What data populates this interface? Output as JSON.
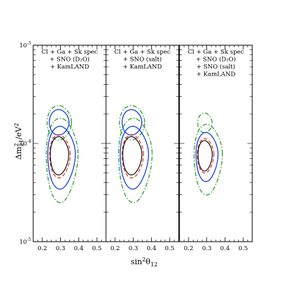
{
  "chart_data": {
    "type": "line",
    "x_axis": {
      "label_base": "sin",
      "label_sup": "2",
      "label_mid": "θ",
      "label_sub": "12",
      "range": [
        0.15,
        0.55
      ],
      "ticks": [
        0.2,
        0.3,
        0.4,
        0.5
      ],
      "tick_labels": [
        "0.2",
        "0.3",
        "0.4",
        "0.5"
      ]
    },
    "y_axis": {
      "label_pre": "Δm",
      "label_sup": "2",
      "label_sub": "21",
      "label_post": "/eV",
      "label_sup2": "2",
      "scale": "log",
      "range": [
        1e-05,
        0.001
      ],
      "ticks": [
        1e-05,
        0.0001,
        0.001
      ],
      "tick_base": "10",
      "tick_exps": [
        "-5",
        "-4",
        "-3"
      ]
    },
    "grid": false,
    "colors": {
      "black": "#000000",
      "red": "#e8322b",
      "blue": "#1f3fdc",
      "green": "#2ca02c"
    },
    "panels": [
      {
        "legend_lines": [
          "Cl + Ga + Sk spec",
          "+ SNO (D₂O)",
          "+ KamLAND"
        ],
        "contours": [
          {
            "style": "dash-dot",
            "color": "green",
            "islands": [
              {
                "cx": 0.3,
                "cy": 7.9e-05,
                "sx": 0.09,
                "sy_up": 0.36,
                "sy_down": 0.5,
                "skew": 0.4
              },
              {
                "cx": 0.29,
                "cy": 0.000164,
                "sx": 0.068,
                "sy_up": 0.17,
                "sy_down": 0.18,
                "skew": 0.2
              }
            ]
          },
          {
            "style": "solid",
            "color": "blue",
            "islands": [
              {
                "cx": 0.298,
                "cy": 7.85e-05,
                "sx": 0.078,
                "sy_up": 0.28,
                "sy_down": 0.36,
                "skew": 0.4
              },
              {
                "cx": 0.29,
                "cy": 0.000164,
                "sx": 0.055,
                "sy_up": 0.13,
                "sy_down": 0.13,
                "skew": 0.2
              }
            ]
          },
          {
            "style": "dashed",
            "color": "red",
            "islands": [
              {
                "cx": 0.292,
                "cy": 7.75e-05,
                "sx": 0.058,
                "sy_up": 0.2,
                "sy_down": 0.24,
                "skew": 0.35
              }
            ]
          },
          {
            "style": "solid",
            "color": "black",
            "islands": [
              {
                "cx": 0.29,
                "cy": 7.75e-05,
                "sx": 0.052,
                "sy_up": 0.18,
                "sy_down": 0.21,
                "skew": 0.35
              }
            ]
          }
        ]
      },
      {
        "legend_lines": [
          "Cl + Ga + Sk spec",
          "+ SNO (salt)",
          "+ KamLAND"
        ],
        "contours": [
          {
            "style": "dash-dot",
            "color": "green",
            "islands": [
              {
                "cx": 0.302,
                "cy": 7.9e-05,
                "sx": 0.095,
                "sy_up": 0.36,
                "sy_down": 0.5,
                "skew": 0.4
              },
              {
                "cx": 0.29,
                "cy": 0.000164,
                "sx": 0.07,
                "sy_up": 0.17,
                "sy_down": 0.18,
                "skew": 0.2
              }
            ]
          },
          {
            "style": "solid",
            "color": "blue",
            "islands": [
              {
                "cx": 0.298,
                "cy": 7.85e-05,
                "sx": 0.08,
                "sy_up": 0.28,
                "sy_down": 0.36,
                "skew": 0.4
              },
              {
                "cx": 0.29,
                "cy": 0.000164,
                "sx": 0.055,
                "sy_up": 0.13,
                "sy_down": 0.13,
                "skew": 0.2
              }
            ]
          },
          {
            "style": "dashed",
            "color": "red",
            "islands": [
              {
                "cx": 0.292,
                "cy": 7.75e-05,
                "sx": 0.06,
                "sy_up": 0.2,
                "sy_down": 0.24,
                "skew": 0.35
              }
            ]
          },
          {
            "style": "solid",
            "color": "black",
            "islands": [
              {
                "cx": 0.29,
                "cy": 7.75e-05,
                "sx": 0.054,
                "sy_up": 0.18,
                "sy_down": 0.21,
                "skew": 0.35
              }
            ]
          }
        ]
      },
      {
        "legend_lines": [
          "Cl + Ga + Sk spec",
          "+ SNO (D₂O)",
          "+ SNO (salt)",
          "+ KamLAND"
        ],
        "contours": [
          {
            "style": "dash-dot",
            "color": "green",
            "islands": [
              {
                "cx": 0.3,
                "cy": 7.85e-05,
                "sx": 0.08,
                "sy_up": 0.3,
                "sy_down": 0.42,
                "skew": 0.4
              },
              {
                "cx": 0.288,
                "cy": 0.000162,
                "sx": 0.04,
                "sy_up": 0.1,
                "sy_down": 0.1,
                "skew": 0.2
              }
            ]
          },
          {
            "style": "solid",
            "color": "blue",
            "islands": [
              {
                "cx": 0.296,
                "cy": 7.8e-05,
                "sx": 0.062,
                "sy_up": 0.22,
                "sy_down": 0.28,
                "skew": 0.35
              }
            ]
          },
          {
            "style": "dashed",
            "color": "red",
            "islands": [
              {
                "cx": 0.29,
                "cy": 7.75e-05,
                "sx": 0.046,
                "sy_up": 0.16,
                "sy_down": 0.19,
                "skew": 0.3
              }
            ]
          },
          {
            "style": "solid",
            "color": "black",
            "islands": [
              {
                "cx": 0.288,
                "cy": 7.75e-05,
                "sx": 0.04,
                "sy_up": 0.14,
                "sy_down": 0.17,
                "skew": 0.3
              }
            ]
          }
        ]
      }
    ]
  }
}
